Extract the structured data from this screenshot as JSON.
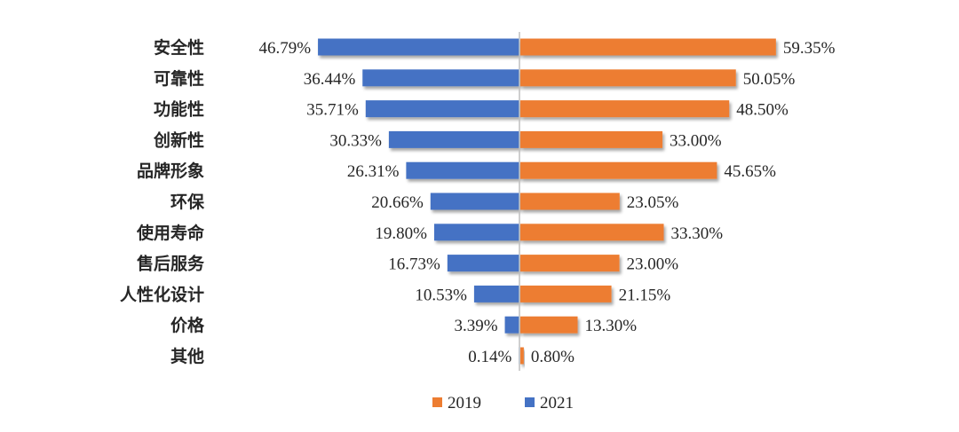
{
  "chart_data": {
    "type": "bar",
    "orientation": "horizontal-diverging",
    "title": "",
    "categories": [
      "安全性",
      "可靠性",
      "功能性",
      "创新性",
      "品牌形象",
      "环保",
      "使用寿命",
      "售后服务",
      "人性化设计",
      "价格",
      "其他"
    ],
    "series": [
      {
        "name": "2019",
        "side": "right",
        "color": "#ED7D31",
        "values": [
          59.35,
          50.05,
          48.5,
          33.0,
          45.65,
          23.05,
          33.3,
          23.0,
          21.15,
          13.3,
          0.8
        ],
        "labels": [
          "59.35%",
          "50.05%",
          "48.50%",
          "33.00%",
          "45.65%",
          "23.05%",
          "33.30%",
          "23.00%",
          "21.15%",
          "13.30%",
          "0.80%"
        ]
      },
      {
        "name": "2021",
        "side": "left",
        "color": "#4472C4",
        "values": [
          46.79,
          36.44,
          35.71,
          30.33,
          26.31,
          20.66,
          19.8,
          16.73,
          10.53,
          3.39,
          0.14
        ],
        "labels": [
          "46.79%",
          "36.44%",
          "35.71%",
          "30.33%",
          "26.31%",
          "20.66%",
          "19.80%",
          "16.73%",
          "10.53%",
          "3.39%",
          "0.14%"
        ]
      }
    ],
    "legend": {
      "position": "bottom",
      "entries": [
        "2019",
        "2021"
      ]
    },
    "axis_line_color": "#BFBFBF"
  }
}
